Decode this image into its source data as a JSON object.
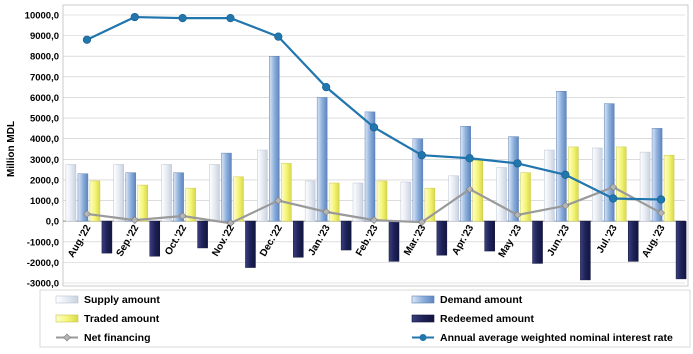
{
  "colors": {
    "supply": "#e6ebf3",
    "demand": "#8eb0dc",
    "traded": "#f5f57a",
    "redeemed": "#1e2257",
    "net": "#9a9a9a",
    "rate": "#2176ae",
    "grid": "#c8c8c8"
  },
  "chart_data": {
    "type": "bar",
    "ylabel": "Million MDL",
    "ylim": [
      -3000,
      10000
    ],
    "ytick_step": 1000,
    "ytick_labels": [
      "10000,0",
      "9000,0",
      "8000,0",
      "7000,0",
      "6000,0",
      "5000,0",
      "4000,0",
      "3000,0",
      "2000,0",
      "1000,0",
      "0,0",
      "-1000,0",
      "-2000,0",
      "-3000,0"
    ],
    "grid": true,
    "legend_position": "bottom",
    "categories": [
      "Aug.'22",
      "Sep.'22",
      "Oct.'22",
      "Nov.'22",
      "Dec.'22",
      "Jan.'23",
      "Feb.'23",
      "Mar.'23",
      "Apr.'23",
      "May '23",
      "Jun.'23",
      "Jul.'23",
      "Aug.'23"
    ],
    "series": [
      {
        "name": "Supply amount",
        "kind": "bar",
        "values": [
          2750,
          2750,
          2750,
          2750,
          3450,
          1950,
          1850,
          1900,
          2200,
          2600,
          3450,
          3550,
          3350
        ]
      },
      {
        "name": "Demand amount",
        "kind": "bar",
        "values": [
          2300,
          2350,
          2350,
          3300,
          8000,
          6000,
          5300,
          4000,
          4600,
          4100,
          6300,
          5700,
          4500
        ]
      },
      {
        "name": "Traded amount",
        "kind": "bar",
        "values": [
          1950,
          1750,
          1600,
          2150,
          2800,
          1850,
          1950,
          1600,
          2950,
          2350,
          3600,
          3600,
          3200
        ]
      },
      {
        "name": "Redeemed amount",
        "kind": "bar",
        "values": [
          -1550,
          -1700,
          -1300,
          -2250,
          -1750,
          -1400,
          -1950,
          -1650,
          -1450,
          -2050,
          -2850,
          -1950,
          -2800
        ]
      },
      {
        "name": "Net financing",
        "kind": "line",
        "values": [
          350,
          50,
          250,
          -100,
          1000,
          450,
          50,
          -50,
          1550,
          300,
          750,
          1650,
          400
        ]
      },
      {
        "name": "Annual average weighted nominal interest rate",
        "kind": "line",
        "axis": "secondary",
        "values": [
          8800,
          9900,
          9850,
          9850,
          8950,
          6500,
          4550,
          3200,
          3050,
          2800,
          2250,
          1100,
          1050
        ]
      }
    ]
  }
}
